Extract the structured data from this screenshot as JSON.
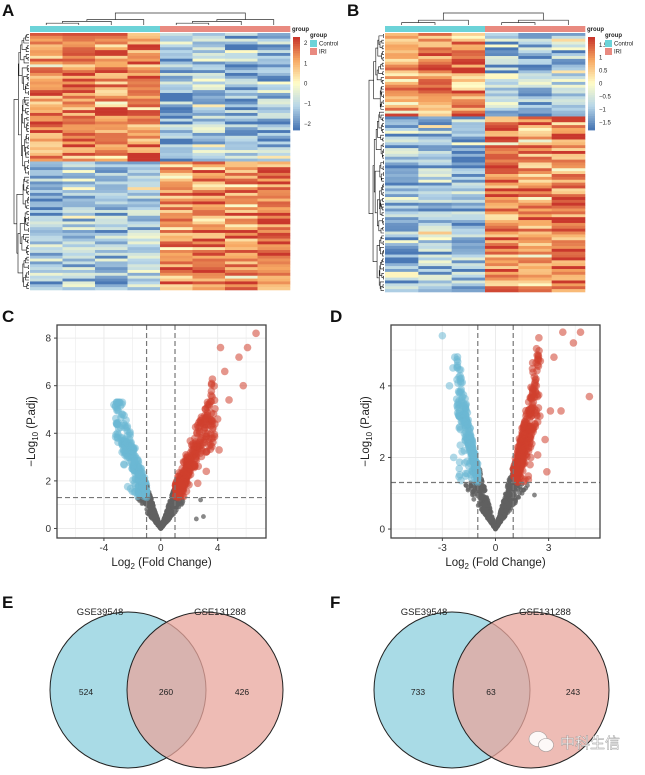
{
  "panels": {
    "A": "A",
    "B": "B",
    "C": "C",
    "D": "D",
    "E": "E",
    "F": "F"
  },
  "colors": {
    "low": "#4a78b5",
    "mid": "#fffdc8",
    "high": "#c9372c",
    "control": "#6cd3d8",
    "iri": "#e98a80",
    "up": "#d0402d",
    "down": "#6cb8d3",
    "ns": "#606060",
    "venn_left": "#a9dbe6",
    "venn_right": "#e8a69c"
  },
  "chart_data": [
    {
      "panel": "A",
      "type": "heatmap",
      "annotation_title": "group",
      "legend": {
        "title": "group",
        "items": [
          "Control",
          "IRI"
        ]
      },
      "groups": [
        "Control",
        "Control",
        "Control",
        "Control",
        "IRI",
        "IRI",
        "IRI",
        "IRI"
      ],
      "color_scale": {
        "ticks": [
          "2",
          "1",
          "0",
          "−1",
          "−2"
        ],
        "range": [
          -2.3,
          2.3
        ]
      },
      "pattern": "upper ~50% of rows high in Control / low in IRI; lower rows low in Control / high in IRI"
    },
    {
      "panel": "B",
      "type": "heatmap",
      "annotation_title": "group",
      "legend": {
        "title": "group",
        "items": [
          "Control",
          "IRI"
        ]
      },
      "groups": [
        "Control",
        "Control",
        "Control",
        "IRI",
        "IRI",
        "IRI"
      ],
      "color_scale": {
        "ticks": [
          "1.5",
          "1",
          "0.5",
          "0",
          "−0.5",
          "−1",
          "−1.5"
        ],
        "range": [
          -1.8,
          1.8
        ]
      },
      "pattern": "upper ~33% of rows high in Control / low in IRI; lower rows low in Control / high in IRI"
    },
    {
      "panel": "C",
      "type": "scatter",
      "xlabel": {
        "pre": "Log",
        "sub": "2",
        "post": " (Fold Change)"
      },
      "ylabel": {
        "pre": "−Log",
        "sub": "10",
        "post": " (P.adj)"
      },
      "xlim": [
        -7.3,
        7.4
      ],
      "ylim": [
        -0.4,
        8.55
      ],
      "xticks": [
        "-4",
        "0",
        "4"
      ],
      "xtick_values": [
        -4,
        0,
        4
      ],
      "yticks": [
        "0",
        "2",
        "4",
        "6",
        "8"
      ],
      "ytick_values": [
        0,
        2,
        4,
        6,
        8
      ],
      "vlines": [
        -1,
        1
      ],
      "hline": 1.3,
      "grid": true,
      "down_max": {
        "x": -3.3,
        "y": 5.3
      },
      "up_max": {
        "x": 6.7,
        "y": 8.2
      }
    },
    {
      "panel": "D",
      "type": "scatter",
      "xlabel": {
        "pre": "Log",
        "sub": "2",
        "post": " (Fold Change)"
      },
      "ylabel": {
        "pre": "−Log",
        "sub": "10",
        "post": " (P.adj)"
      },
      "xlim": [
        -5.9,
        5.9
      ],
      "ylim": [
        -0.25,
        5.7
      ],
      "xticks": [
        "-3",
        "0",
        "3"
      ],
      "xtick_values": [
        -3,
        0,
        3
      ],
      "yticks": [
        "0",
        "2",
        "4"
      ],
      "ytick_values": [
        0,
        2,
        4
      ],
      "vlines": [
        -1,
        1
      ],
      "hline": 1.3,
      "grid": true,
      "down_max": {
        "x": -3.0,
        "y": 5.4
      },
      "up_max": {
        "x": 4.8,
        "y": 5.5
      }
    },
    {
      "panel": "E",
      "type": "venn",
      "sets": [
        "GSE39548",
        "GSE131288"
      ],
      "only_left": "524",
      "both": "260",
      "only_right": "426"
    },
    {
      "panel": "F",
      "type": "venn",
      "sets": [
        "GSE39548",
        "GSE131288"
      ],
      "only_left": "733",
      "both": "63",
      "only_right": "243"
    }
  ],
  "watermark": {
    "text": "中科生信",
    "icon": "wechat-icon"
  }
}
